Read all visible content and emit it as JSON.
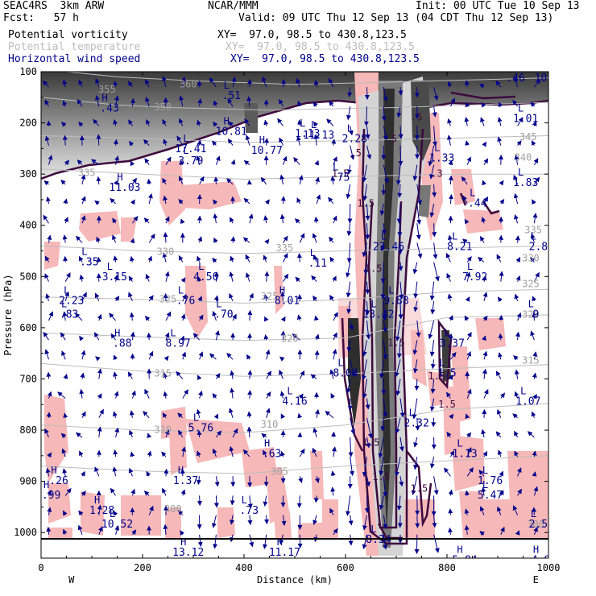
{
  "header": {
    "model": "SEAC4RS  3km ARW",
    "forecast": "Fcst:   57 h",
    "center": "NCAR/MMM",
    "init": "Init: 00 UTC Tue 10 Sep 13",
    "valid": "Valid: 09 UTC Thu 12 Sep 13 (04 CDT Thu 12 Sep 13)",
    "fields": [
      {
        "name": "Potential vorticity",
        "xy": "XY=  97.0, 98.5 to 430.8,123.5",
        "color": "#000000"
      },
      {
        "name": "Potential temperature",
        "xy": "XY=  97.0, 98.5 to 430.8,123.5",
        "color": "#bdbdbd"
      },
      {
        "name": "Horizontal wind speed",
        "xy": "XY=  97.0, 98.5 to 430.8,123.5",
        "color": "#00008b"
      }
    ]
  },
  "chart_data": {
    "type": "cross-section",
    "xlabel": "Distance (km)",
    "ylabel": "Pressure (hPa)",
    "xlim": [
      0,
      1000
    ],
    "ylim": [
      1050,
      100
    ],
    "x_ticks": [
      "0",
      "200",
      "400",
      "600",
      "800",
      "1000"
    ],
    "y_ticks": [
      "100",
      "200",
      "300",
      "400",
      "500",
      "600",
      "700",
      "800",
      "900",
      "1000"
    ],
    "x_tick_values": [
      0,
      200,
      400,
      600,
      800,
      1000
    ],
    "y_tick_values": [
      100,
      200,
      300,
      400,
      500,
      600,
      700,
      800,
      900,
      1000
    ],
    "left_end_label": "W",
    "right_end_label": "E",
    "isentropes": [
      {
        "label": "360",
        "points": [
          [
            0,
            95
          ],
          [
            150,
            110
          ],
          [
            300,
            118
          ],
          [
            500,
            125
          ],
          [
            700,
            120
          ],
          [
            1000,
            112
          ]
        ],
        "label_pos": [
          290,
          125
        ]
      },
      {
        "label": "350",
        "points": [
          [
            0,
            150
          ],
          [
            150,
            165
          ],
          [
            250,
            170
          ],
          [
            450,
            175
          ],
          [
            700,
            170
          ],
          [
            1000,
            160
          ]
        ],
        "label_pos": [
          240,
          170
        ]
      },
      {
        "label": "345",
        "points": [
          [
            0,
            225
          ],
          [
            200,
            230
          ],
          [
            400,
            238
          ],
          [
            600,
            235
          ],
          [
            800,
            230
          ],
          [
            1000,
            225
          ]
        ],
        "label_pos": [
          960,
          228
        ]
      },
      {
        "label": "335",
        "points": [
          [
            0,
            290
          ],
          [
            200,
            300
          ],
          [
            400,
            310
          ],
          [
            600,
            305
          ],
          [
            800,
            300
          ],
          [
            1000,
            300
          ]
        ],
        "label_pos": [
          90,
          298
        ]
      },
      {
        "label": "330",
        "points": [
          [
            0,
            440
          ],
          [
            200,
            450
          ],
          [
            400,
            455
          ],
          [
            600,
            450
          ],
          [
            800,
            445
          ],
          [
            1000,
            440
          ]
        ],
        "label_pos": [
          245,
          452
        ]
      },
      {
        "label": "325",
        "points": [
          [
            0,
            540
          ],
          [
            200,
            545
          ],
          [
            400,
            552
          ],
          [
            600,
            545
          ],
          [
            800,
            530
          ],
          [
            1000,
            525
          ]
        ],
        "label_pos": [
          250,
          545
        ]
      },
      {
        "label": "320",
        "points": [
          [
            0,
            610
          ],
          [
            200,
            618
          ],
          [
            400,
            625
          ],
          [
            600,
            620
          ],
          [
            800,
            580
          ],
          [
            1000,
            575
          ]
        ],
        "label_pos": [
          490,
          622
        ]
      },
      {
        "label": "315",
        "points": [
          [
            0,
            670
          ],
          [
            200,
            685
          ],
          [
            400,
            695
          ],
          [
            600,
            690
          ],
          [
            800,
            680
          ],
          [
            1000,
            672
          ]
        ],
        "label_pos": [
          240,
          690
        ]
      },
      {
        "label": "310",
        "points": [
          [
            0,
            790
          ],
          [
            200,
            800
          ],
          [
            400,
            805
          ],
          [
            600,
            790
          ],
          [
            800,
            760
          ],
          [
            1000,
            748
          ]
        ],
        "label_pos": [
          240,
          800
        ]
      },
      {
        "label": "305",
        "points": [
          [
            0,
            870
          ],
          [
            200,
            880
          ],
          [
            400,
            885
          ],
          [
            600,
            870
          ],
          [
            800,
            860
          ],
          [
            1000,
            850
          ]
        ],
        "label_pos": [
          470,
          882
        ]
      }
    ],
    "isentrope_extra_labels": [
      {
        "label": "355",
        "pos": [
          130,
          135
        ]
      },
      {
        "label": "340",
        "pos": [
          950,
          268
        ]
      },
      {
        "label": "335",
        "pos": [
          970,
          410
        ]
      },
      {
        "label": "330",
        "pos": [
          965,
          465
        ]
      },
      {
        "label": "325",
        "pos": [
          965,
          515
        ]
      },
      {
        "label": "320",
        "pos": [
          965,
          575
        ]
      },
      {
        "label": "315",
        "pos": [
          965,
          665
        ]
      },
      {
        "label": "310",
        "pos": [
          450,
          790
        ]
      },
      {
        "label": "300",
        "pos": [
          260,
          955
        ]
      },
      {
        "label": "300",
        "pos": [
          975,
          985
        ]
      },
      {
        "label": "325",
        "pos": [
          450,
          540
        ]
      },
      {
        "label": "335",
        "pos": [
          480,
          445
        ]
      }
    ],
    "pv_labels": [
      {
        "text": "1.5",
        "pos": [
          640,
          358
        ]
      },
      {
        "text": "1.5",
        "pos": [
          655,
          485
        ]
      },
      {
        "text": "1.5",
        "pos": [
          590,
          300
        ]
      },
      {
        "text": "1.5",
        "pos": [
          780,
          695
        ]
      },
      {
        "text": "1.5",
        "pos": [
          800,
          750
        ]
      },
      {
        "text": "1.5",
        "pos": [
          650,
          825
        ]
      },
      {
        "text": "1.5",
        "pos": [
          670,
          892
        ]
      },
      {
        "text": "1.5",
        "pos": [
          745,
          915
        ]
      },
      {
        "text": ".5",
        "pos": [
          690,
          232
        ]
      },
      {
        "text": ".5",
        "pos": [
          620,
          260
        ]
      },
      {
        "text": "1.5",
        "pos": [
          700,
          630
        ]
      },
      {
        "text": ".5",
        "pos": [
          740,
          190
        ]
      },
      {
        "text": ".3",
        "pos": [
          780,
          300
        ]
      }
    ],
    "speed_labels": [
      {
        "kind": "H",
        "value": ".43",
        "pos": [
          135,
          172
        ]
      },
      {
        "kind": "L",
        "value": "1.01",
        "pos": [
          955,
          193
        ]
      },
      {
        "kind": "H",
        "value": "10.81",
        "pos": [
          375,
          218
        ]
      },
      {
        "kind": "L",
        "value": "1.13",
        "pos": [
          525,
          222
        ]
      },
      {
        "kind": "L",
        "value": "11.13",
        "pos": [
          547,
          225
        ]
      },
      {
        "kind": "L",
        "value": "2.28",
        "pos": [
          618,
          232
        ]
      },
      {
        "kind": "L",
        "value": "17.41",
        "pos": [
          295,
          252
        ]
      },
      {
        "kind": "H",
        "value": "10.77",
        "pos": [
          445,
          255
        ]
      },
      {
        "kind": "L",
        "value": "3.79",
        "pos": [
          295,
          275
        ]
      },
      {
        "kind": "H",
        "value": "11.03",
        "pos": [
          165,
          327
        ]
      },
      {
        "kind": "L",
        "value": ".75",
        "pos": [
          590,
          308
        ]
      },
      {
        "kind": "L",
        "value": "1.83",
        "pos": [
          955,
          318
        ]
      },
      {
        "kind": "L",
        "value": "8.21",
        "pos": [
          825,
          443
        ]
      },
      {
        "kind": "L",
        "value": "23.46",
        "pos": [
          685,
          443
        ]
      },
      {
        "kind": "L",
        "value": "2.8",
        "pos": [
          980,
          443
        ]
      },
      {
        "kind": "L",
        "value": ".35",
        "pos": [
          95,
          473
        ]
      },
      {
        "kind": "L",
        "value": ".11",
        "pos": [
          545,
          475
        ]
      },
      {
        "kind": "L",
        "value": "3.15",
        "pos": [
          145,
          502
        ]
      },
      {
        "kind": "L",
        "value": "4.50",
        "pos": [
          325,
          502
        ]
      },
      {
        "kind": "L",
        "value": "7.92",
        "pos": [
          855,
          502
        ]
      },
      {
        "kind": "L",
        "value": "2.23",
        "pos": [
          60,
          548
        ]
      },
      {
        "kind": "L",
        "value": ".76",
        "pos": [
          285,
          548
        ]
      },
      {
        "kind": "H",
        "value": "8.01",
        "pos": [
          485,
          548
        ]
      },
      {
        "kind": "L",
        "value": "9.88",
        "pos": [
          700,
          548
        ]
      },
      {
        "kind": "L",
        "value": ".83",
        "pos": [
          55,
          575
        ]
      },
      {
        "kind": "L",
        "value": ".70",
        "pos": [
          360,
          575
        ]
      },
      {
        "kind": "L",
        "value": "13.42",
        "pos": [
          665,
          575
        ]
      },
      {
        "kind": "L",
        "value": "9",
        "pos": [
          975,
          575
        ]
      },
      {
        "kind": "H",
        "value": ".88",
        "pos": [
          160,
          632
        ]
      },
      {
        "kind": "L",
        "value": "8.97",
        "pos": [
          270,
          632
        ]
      },
      {
        "kind": "L",
        "value": "3.37",
        "pos": [
          810,
          632
        ]
      },
      {
        "kind": "L",
        "value": "8.04",
        "pos": [
          600,
          690
        ]
      },
      {
        "kind": "L",
        "value": "4.16",
        "pos": [
          500,
          745
        ]
      },
      {
        "kind": "L",
        "value": "1.07",
        "pos": [
          960,
          745
        ]
      },
      {
        "kind": "L",
        "value": "5.76",
        "pos": [
          315,
          797
        ]
      },
      {
        "kind": "L",
        "value": "2.32",
        "pos": [
          740,
          787
        ]
      },
      {
        "kind": "H",
        "value": ".63",
        "pos": [
          455,
          847
        ]
      },
      {
        "kind": "L",
        "value": "1.13",
        "pos": [
          835,
          847
        ]
      },
      {
        "kind": "H",
        "value": ".26",
        "pos": [
          35,
          900
        ]
      },
      {
        "kind": "H",
        "value": "1.37",
        "pos": [
          285,
          900
        ]
      },
      {
        "kind": "L",
        "value": "1.76",
        "pos": [
          885,
          900
        ]
      },
      {
        "kind": "H",
        "value": ".99",
        "pos": [
          20,
          928
        ]
      },
      {
        "kind": "L",
        "value": "5.47",
        "pos": [
          885,
          928
        ]
      },
      {
        "kind": "H",
        "value": "1.28",
        "pos": [
          120,
          958
        ]
      },
      {
        "kind": "L",
        "value": ".73",
        "pos": [
          410,
          958
        ]
      },
      {
        "kind": "L",
        "value": "10.52",
        "pos": [
          150,
          985
        ]
      },
      {
        "kind": "L",
        "value": "2.5",
        "pos": [
          980,
          985
        ]
      },
      {
        "kind": "L",
        "value": "8.34",
        "pos": [
          665,
          1015
        ]
      },
      {
        "kind": "H",
        "value": "13.12",
        "pos": [
          290,
          1040
        ]
      },
      {
        "kind": "H",
        "value": "11.17",
        "pos": [
          480,
          1040
        ]
      },
      {
        "kind": "H",
        "value": "5.84",
        "pos": [
          835,
          1055
        ]
      },
      {
        "kind": "H",
        "value": "4.9",
        "pos": [
          985,
          1055
        ]
      },
      {
        "kind": "H",
        "value": ".46",
        "pos": [
          935,
          113
        ]
      },
      {
        "kind": "L",
        "value": "10",
        "pos": [
          985,
          113
        ]
      },
      {
        "kind": "L",
        "value": ".51",
        "pos": [
          375,
          148
        ]
      },
      {
        "kind": "L",
        "value": "1.33",
        "pos": [
          790,
          270
        ]
      },
      {
        "kind": "L",
        "value": ".44",
        "pos": [
          860,
          358
        ]
      },
      {
        "kind": "L",
        "value": "1.5",
        "pos": [
          800,
          690
        ]
      }
    ]
  }
}
